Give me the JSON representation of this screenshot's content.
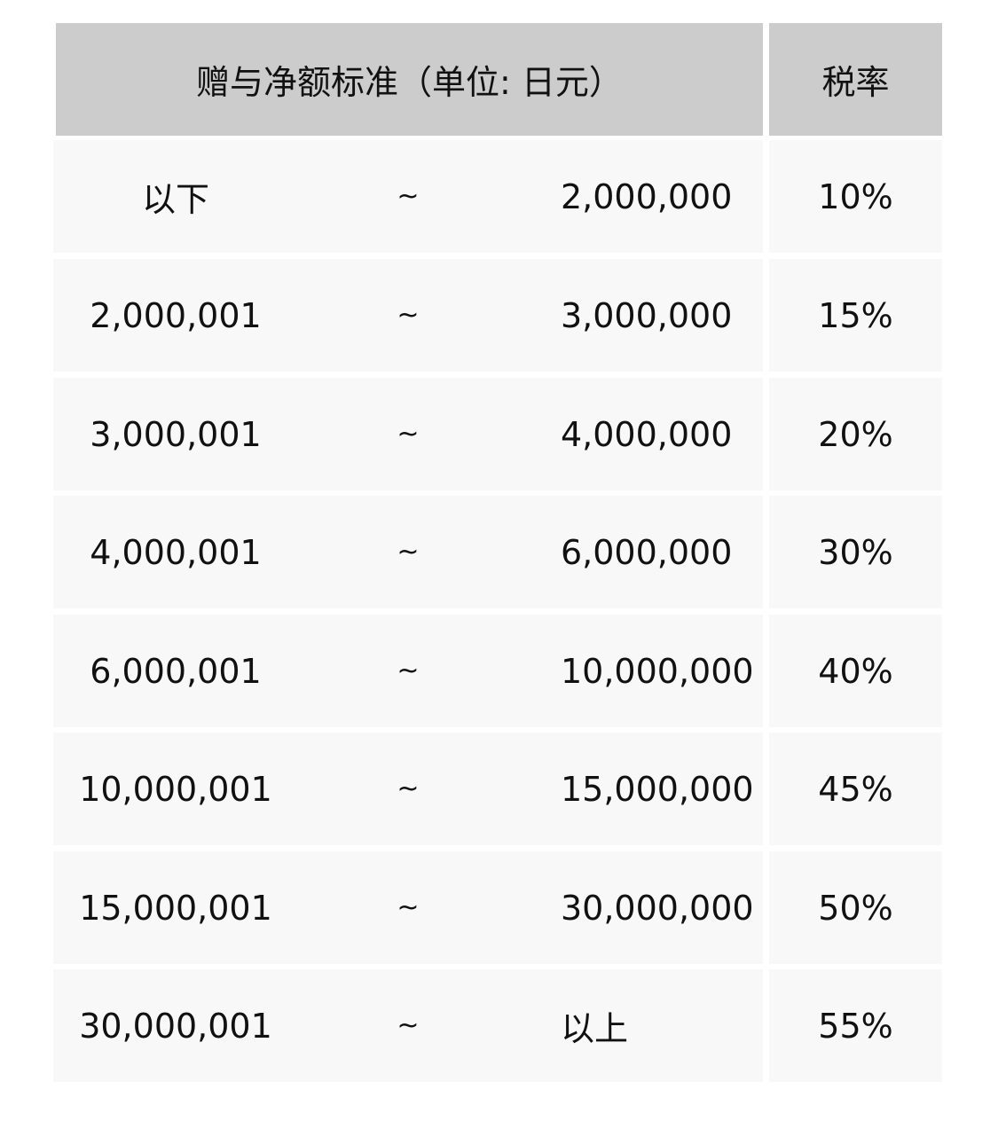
{
  "header": {
    "range": "赠与净额标准（单位: 日元）",
    "rate": "税率"
  },
  "rows": [
    {
      "from": "以下",
      "sep": "~",
      "to": "2,000,000",
      "rate": "10%"
    },
    {
      "from": "2,000,001",
      "sep": "~",
      "to": "3,000,000",
      "rate": "15%"
    },
    {
      "from": "3,000,001",
      "sep": "~",
      "to": "4,000,000",
      "rate": "20%"
    },
    {
      "from": "4,000,001",
      "sep": "~",
      "to": "6,000,000",
      "rate": "30%"
    },
    {
      "from": "6,000,001",
      "sep": "~",
      "to": "10,000,000",
      "rate": "40%"
    },
    {
      "from": "10,000,001",
      "sep": "~",
      "to": "15,000,000",
      "rate": "45%"
    },
    {
      "from": "15,000,001",
      "sep": "~",
      "to": "30,000,000",
      "rate": "50%"
    },
    {
      "from": "30,000,001",
      "sep": "~",
      "to": "以上",
      "rate": "55%"
    }
  ],
  "colors": {
    "header_bg": "#cccccc",
    "row_bg": "#f8f8f8"
  }
}
